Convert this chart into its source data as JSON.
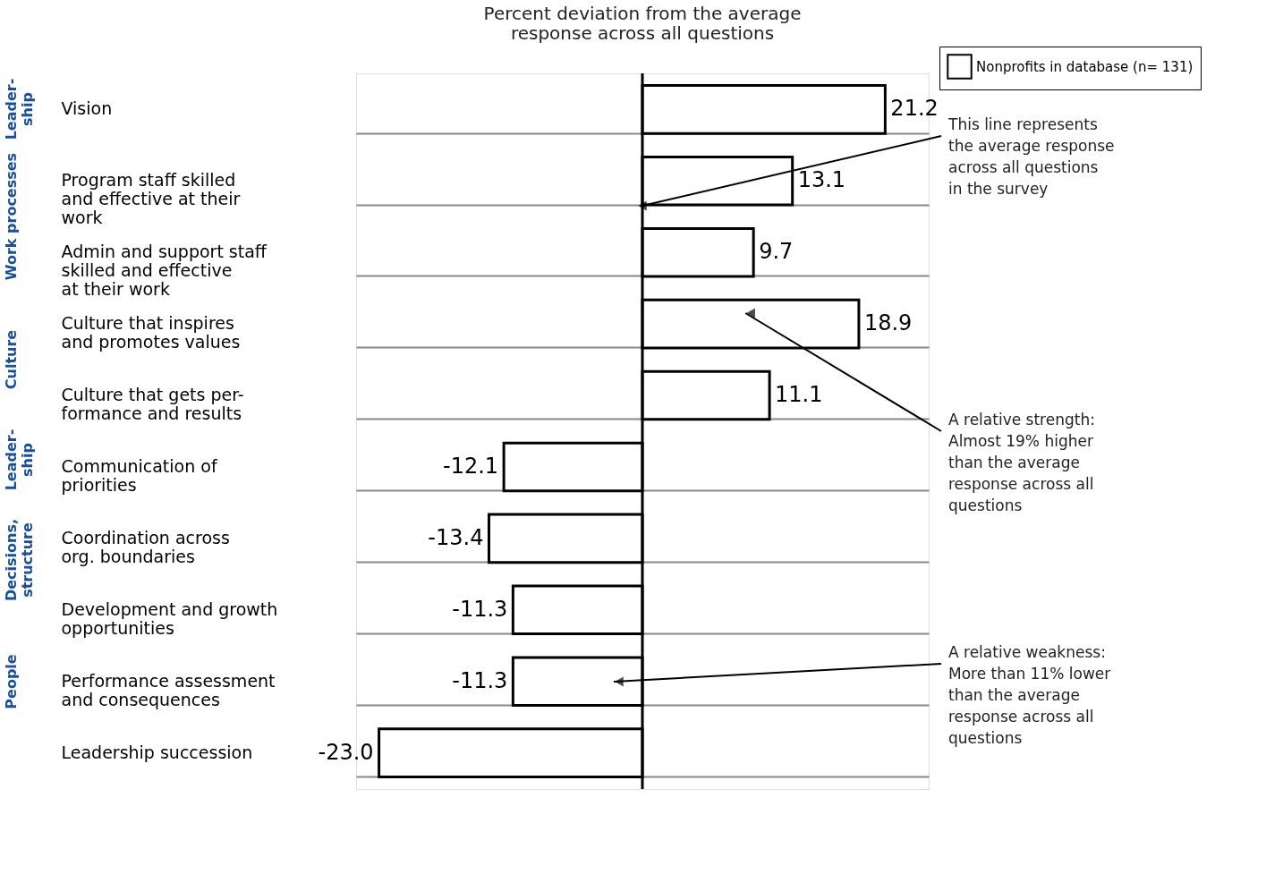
{
  "chart_data": {
    "type": "bar",
    "orientation": "horizontal",
    "title": "Percent deviation from the average response across all questions",
    "categories": [
      "Vision",
      "Program staff skilled and effective at their work",
      "Admin and support staff skilled and effective at their work",
      "Culture that inspires and promotes values",
      "Culture that gets per-formance and results",
      "Communication of priorities",
      "Coordination across org. boundaries",
      "Development and growth opportunities",
      "Performance assessment and consequences",
      "Leadership succession"
    ],
    "series": [
      {
        "name": "Nonprofits in database (n= 131)",
        "color": "#ffffff",
        "values": [
          21.2,
          13.1,
          9.7,
          18.9,
          11.1,
          -12.1,
          -13.4,
          -11.3,
          -11.3,
          -23.0
        ],
        "value_labels": [
          "21.2",
          "13.1",
          "9.7",
          "18.9",
          "11.1",
          "-12.1",
          "-13.4",
          "-11.3",
          "-11.3",
          "-23.0"
        ]
      }
    ],
    "grid": "y",
    "legend": "top right",
    "annotations": [
      "Leader-ship",
      "Work processes",
      "Culture",
      "Leader-ship",
      "Decisions, structure",
      "People",
      "This line represents the average response across all questions in the survey",
      "A relative strength: Almost 19% higher than the average response across all questions",
      "A relative weakness: More than 11% lower than the average response across all questions"
    ]
  }
}
